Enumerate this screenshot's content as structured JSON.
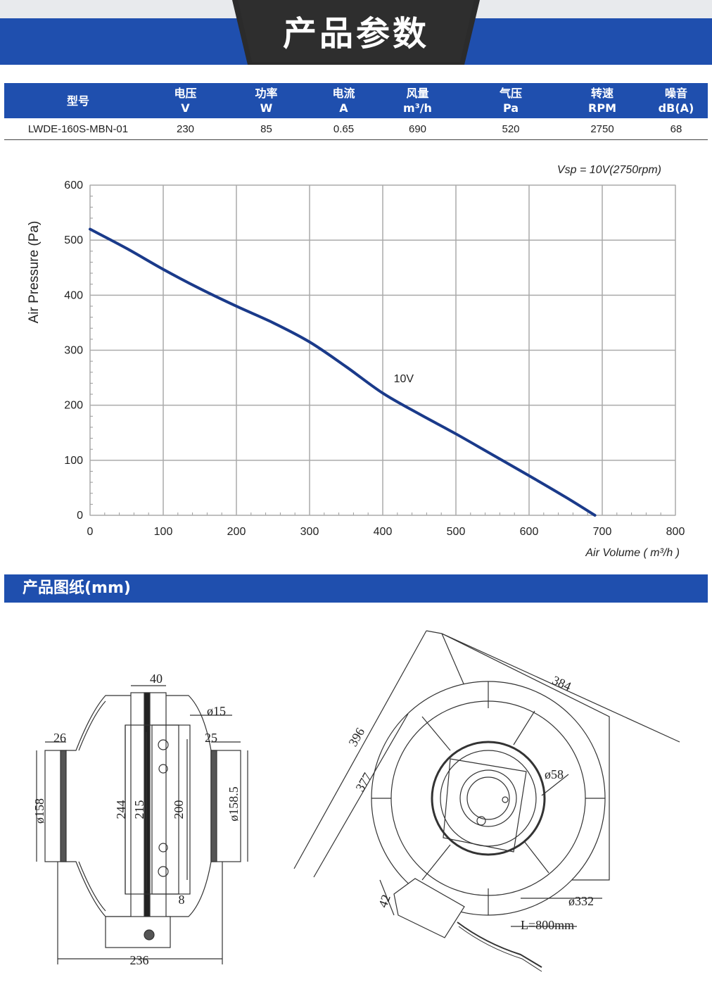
{
  "header": {
    "title": "产品参数"
  },
  "spec_table": {
    "columns": [
      {
        "name": "型号",
        "unit": ""
      },
      {
        "name": "电压",
        "unit": "V"
      },
      {
        "name": "功率",
        "unit": "W"
      },
      {
        "name": "电流",
        "unit": "A"
      },
      {
        "name": "风量",
        "unit": "m³/h"
      },
      {
        "name": "气压",
        "unit": "Pa"
      },
      {
        "name": "转速",
        "unit": "RPM"
      },
      {
        "name": "噪音",
        "unit": "dB(A)"
      }
    ],
    "row": [
      "LWDE-160S-MBN-01",
      "230",
      "85",
      "0.65",
      "690",
      "520",
      "2750",
      "68"
    ]
  },
  "chart_data": {
    "type": "line",
    "title": "Vsp = 10V(2750rpm)",
    "xlabel": "Air Volume ( m³/h )",
    "ylabel": "Air Pressure  (Pa)",
    "xlim": [
      0,
      800
    ],
    "ylim": [
      0,
      600
    ],
    "xticks": [
      0,
      100,
      200,
      300,
      400,
      500,
      600,
      700,
      800
    ],
    "yticks": [
      0,
      100,
      200,
      300,
      400,
      500,
      600
    ],
    "grid": true,
    "line_color": "#1a3a8a",
    "series": [
      {
        "name": "10V",
        "x": [
          0,
          50,
          100,
          150,
          200,
          250,
          300,
          350,
          400,
          450,
          500,
          550,
          600,
          650,
          690
        ],
        "y": [
          520,
          485,
          447,
          412,
          380,
          350,
          315,
          270,
          222,
          184,
          148,
          110,
          72,
          33,
          0
        ]
      }
    ]
  },
  "drawing_section": {
    "title": "产品图纸(mm)"
  },
  "side_view": {
    "dims": {
      "width_top": "40",
      "hole": "ø15",
      "left_stub": "26",
      "right_stub": "25",
      "left_dia": "ø158",
      "right_dia": "ø158.5",
      "h244": "244",
      "h215": "215",
      "h200": "200",
      "gap": "8",
      "width_bottom": "236"
    }
  },
  "front_view": {
    "dims": {
      "diag_396": "396",
      "diag_377": "377",
      "side_384": "384",
      "hub": "ø58",
      "wheel": "ø332",
      "box": "42",
      "cable": "L=800mm"
    }
  }
}
